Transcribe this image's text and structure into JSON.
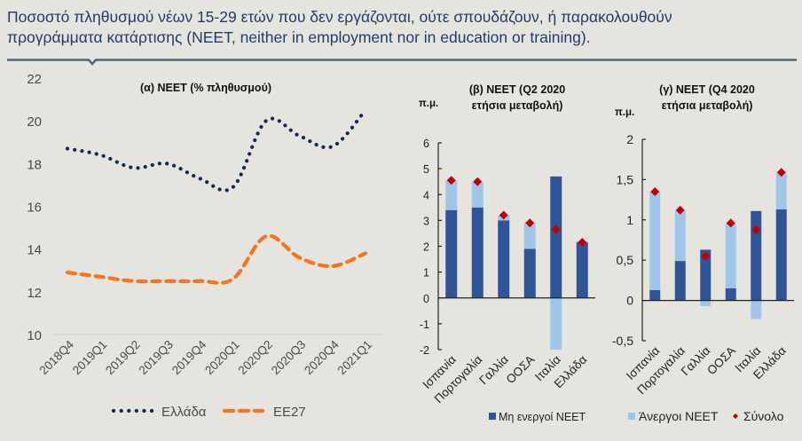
{
  "header": {
    "title_line1": "Ποσοστό πληθυσμού νέων 15-29 ετών που δεν εργάζονται, ούτε σπουδάζουν, ή παρακολουθούν",
    "title_line2": "προγράμματα κατάρτισης (NEET, neither in employment nor in education or training)."
  },
  "colors": {
    "title": "#1f3d6b",
    "greece": "#12295a",
    "eu27": "#f7741c",
    "inactive": "#2f5597",
    "unemployed": "#9fc5e8",
    "total": "#c00000",
    "axis_text": "#4a4a4a",
    "rule": "#4a6584"
  },
  "chart_data": [
    {
      "type": "line",
      "title": "(α) NEET  (% πληθυσμού)",
      "xlabel": "",
      "ylabel": "",
      "x": [
        "2018Q4",
        "2019Q1",
        "2019Q2",
        "2019Q3",
        "2019Q4",
        "2020Q1",
        "2020Q2",
        "2020Q3",
        "2020Q4",
        "2021Q1"
      ],
      "yticks": [
        "10",
        "12",
        "14",
        "16",
        "18",
        "20",
        "22"
      ],
      "ylim": [
        10,
        22
      ],
      "grid": false,
      "legend_position": "bottom",
      "series": [
        {
          "name": "Ελλάδα",
          "style": "dotted",
          "values": [
            18.7,
            18.4,
            17.8,
            18.0,
            17.3,
            16.9,
            20.0,
            19.3,
            18.8,
            20.5
          ]
        },
        {
          "name": "ΕΕ27",
          "style": "dashed",
          "values": [
            12.9,
            12.7,
            12.5,
            12.5,
            12.5,
            12.6,
            14.6,
            13.6,
            13.2,
            13.8
          ]
        }
      ]
    },
    {
      "type": "bar",
      "stacked": true,
      "title_line1": "(β) NEET (Q2 2020",
      "title_line2": "ετήσια μεταβολή)",
      "ylabel": "π.μ.",
      "categories": [
        "Ισπανία",
        "Πορτογαλία",
        "Γαλλία",
        "ΟΟΣΑ",
        "Ιταλία",
        "Ελλάδα"
      ],
      "yticks": [
        "-2",
        "-1",
        "0",
        "1",
        "2",
        "3",
        "4",
        "5",
        "6"
      ],
      "ylim": [
        -2,
        6
      ],
      "series": [
        {
          "name": "Μη ενεργοί NEET",
          "values": [
            3.4,
            3.5,
            3.0,
            1.9,
            4.7,
            2.15
          ]
        },
        {
          "name": "Άνεργοι NEET",
          "values": [
            1.15,
            1.0,
            0.2,
            1.0,
            -2.0,
            0.05
          ]
        },
        {
          "name": "Σύνολο",
          "marker": "diamond",
          "values": [
            4.55,
            4.5,
            3.2,
            2.9,
            2.65,
            2.15
          ]
        }
      ]
    },
    {
      "type": "bar",
      "stacked": true,
      "title_line1": "(γ) NEET (Q4 2020",
      "title_line2": "ετήσια μεταβολή)",
      "ylabel": "π.μ.",
      "categories": [
        "Ισπανία",
        "Πορτογαλία",
        "Γαλλία",
        "ΟΟΣΑ",
        "Ιταλία",
        "Ελλάδα"
      ],
      "yticks": [
        "-0,5",
        "0",
        "0,5",
        "1",
        "1,5",
        "2"
      ],
      "ylim": [
        -0.5,
        2
      ],
      "series": [
        {
          "name": "Μη ενεργοί NEET",
          "values": [
            0.13,
            0.49,
            0.63,
            0.15,
            1.11,
            1.13
          ]
        },
        {
          "name": "Άνεργοι NEET",
          "values": [
            1.22,
            0.63,
            -0.07,
            0.81,
            -0.23,
            0.45
          ]
        },
        {
          "name": "Σύνολο",
          "marker": "diamond",
          "values": [
            1.35,
            1.12,
            0.55,
            0.96,
            0.88,
            1.59
          ]
        }
      ]
    }
  ],
  "legend_bars": {
    "inactive": "Μη ενεργοί NEET",
    "unemployed": "Άνεργοι NEET",
    "total": "Σύνολο"
  }
}
